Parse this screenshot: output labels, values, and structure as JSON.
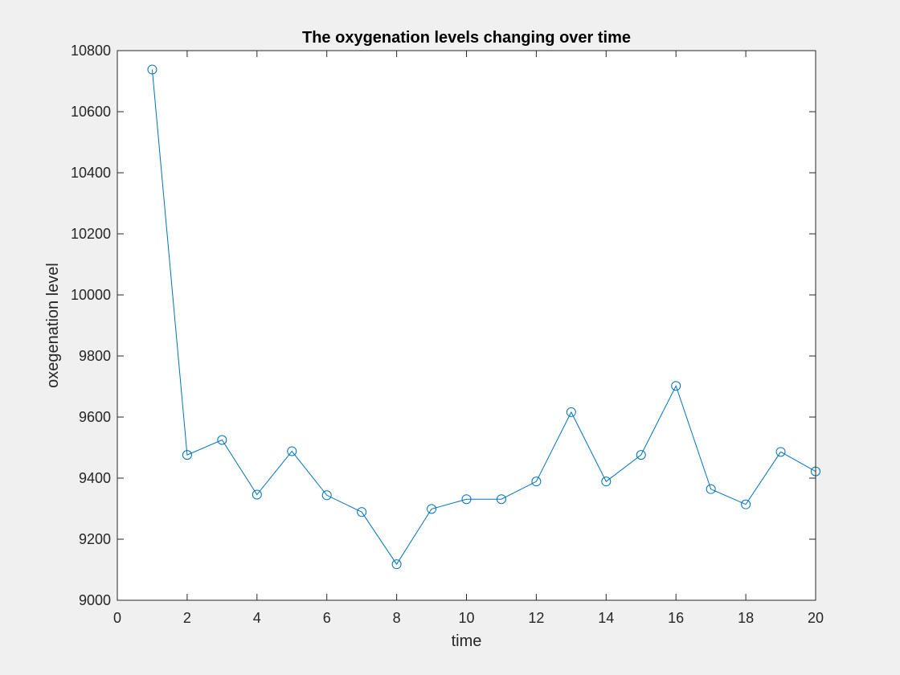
{
  "chart_data": {
    "type": "line",
    "title": "The oxygenation levels changing over time",
    "xlabel": "time",
    "ylabel": "oxegenation level",
    "xlim": [
      0,
      20
    ],
    "ylim": [
      9000,
      10800
    ],
    "xticks": [
      0,
      2,
      4,
      6,
      8,
      10,
      12,
      14,
      16,
      18,
      20
    ],
    "yticks": [
      9000,
      9200,
      9400,
      9600,
      9800,
      10000,
      10200,
      10400,
      10600,
      10800
    ],
    "xtick_labels": [
      "0",
      "2",
      "4",
      "6",
      "8",
      "10",
      "12",
      "14",
      "16",
      "18",
      "20"
    ],
    "ytick_labels": [
      "9000",
      "9200",
      "9400",
      "9600",
      "9800",
      "10000",
      "10200",
      "10400",
      "10600",
      "10800"
    ],
    "grid": false,
    "marker": "circle",
    "series": [
      {
        "color": "#0072bd",
        "x": [
          1,
          2,
          3,
          4,
          5,
          6,
          7,
          8,
          9,
          10,
          11,
          12,
          13,
          14,
          15,
          16,
          17,
          18,
          19,
          20
        ],
        "values": [
          10738,
          9476,
          9525,
          9346,
          9488,
          9344,
          9289,
          9118,
          9299,
          9331,
          9331,
          9389,
          9616,
          9389,
          9476,
          9702,
          9364,
          9314,
          9486,
          9422
        ]
      }
    ]
  }
}
